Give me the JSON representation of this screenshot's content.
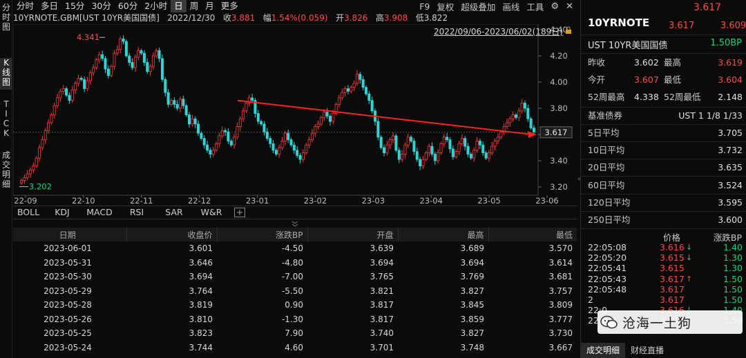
{
  "vtabs": [
    {
      "label": "分\n时\n图"
    },
    {
      "label": "K\n线\n图"
    },
    {
      "label": "T\nI\nC\nK"
    },
    {
      "label": "成\n交\n明\n细"
    }
  ],
  "periods": [
    "分时",
    "多日",
    "15分",
    "30分",
    "60分",
    "2小时",
    "日",
    "周",
    "月",
    "更多"
  ],
  "active_period": "日",
  "tools": [
    "F9",
    "复权",
    "超级叠加",
    "画线",
    "工具"
  ],
  "info": {
    "name": "10YRNOTE.GBM[UST 10YR美国国债]",
    "date": "2022/12/30",
    "close_label": "收",
    "close": "3.881",
    "chg_label": "幅",
    "chg": "1.54%(0.059)",
    "open_label": "开",
    "open": "3.826",
    "high_label": "高",
    "high": "3.908",
    "low_label": "低",
    "low": "3.822"
  },
  "range_label": "2022/09/06-2023/06/02(189日)",
  "chart_data": {
    "type": "candlestick",
    "y_ticks": [
      "4.40",
      "4.20",
      "4.00",
      "3.80",
      "3.60",
      "3.40",
      "3.20"
    ],
    "x_ticks": [
      "22-09",
      "22-10",
      "22-11",
      "22-12",
      "23-01",
      "23-02",
      "23-03",
      "23-04",
      "23-05",
      "23-06"
    ],
    "ylim": [
      3.2,
      4.4
    ],
    "max_label": "4.341",
    "min_label": "3.202",
    "last_label": "3.617",
    "closes": [
      3.25,
      3.27,
      3.3,
      3.33,
      3.36,
      3.42,
      3.5,
      3.56,
      3.63,
      3.69,
      3.75,
      3.82,
      3.88,
      3.93,
      3.95,
      3.9,
      3.86,
      3.94,
      3.99,
      4.03,
      4.02,
      3.95,
      4.01,
      4.07,
      4.11,
      4.17,
      4.21,
      4.18,
      4.1,
      4.05,
      4.12,
      4.22,
      4.25,
      4.33,
      4.31,
      4.2,
      4.15,
      4.11,
      4.19,
      4.24,
      4.22,
      4.15,
      4.08,
      4.12,
      4.2,
      4.24,
      4.18,
      4.02,
      3.92,
      3.83,
      3.86,
      3.83,
      3.8,
      3.87,
      3.82,
      3.75,
      3.68,
      3.72,
      3.68,
      3.61,
      3.57,
      3.52,
      3.48,
      3.45,
      3.48,
      3.53,
      3.59,
      3.63,
      3.62,
      3.55,
      3.52,
      3.58,
      3.66,
      3.72,
      3.78,
      3.84,
      3.88,
      3.86,
      3.76,
      3.7,
      3.68,
      3.62,
      3.57,
      3.53,
      3.48,
      3.45,
      3.5,
      3.55,
      3.61,
      3.56,
      3.52,
      3.48,
      3.44,
      3.41,
      3.46,
      3.52,
      3.56,
      3.61,
      3.66,
      3.68,
      3.73,
      3.77,
      3.74,
      3.7,
      3.76,
      3.83,
      3.88,
      3.92,
      3.95,
      3.93,
      3.96,
      3.99,
      4.06,
      4.02,
      3.96,
      3.91,
      3.86,
      3.78,
      3.7,
      3.58,
      3.5,
      3.46,
      3.52,
      3.56,
      3.59,
      3.48,
      3.41,
      3.45,
      3.52,
      3.58,
      3.55,
      3.47,
      3.41,
      3.36,
      3.41,
      3.46,
      3.51,
      3.45,
      3.4,
      3.46,
      3.53,
      3.58,
      3.56,
      3.49,
      3.43,
      3.47,
      3.53,
      3.57,
      3.51,
      3.45,
      3.42,
      3.48,
      3.55,
      3.52,
      3.46,
      3.42,
      3.46,
      3.51,
      3.55,
      3.58,
      3.62,
      3.66,
      3.69,
      3.72,
      3.75,
      3.73,
      3.78,
      3.84,
      3.8,
      3.72,
      3.65,
      3.62
    ]
  },
  "indicators": [
    "BOLL",
    "KDJ",
    "MACD",
    "RSI",
    "SAR",
    "W&R"
  ],
  "table": {
    "headers": [
      "日期",
      "收盘价",
      "涨跌BP",
      "开盘",
      "最高",
      "最低"
    ],
    "rows": [
      [
        "2023-06-01",
        "3.601",
        "-4.50",
        "3.639",
        "3.689",
        "3.570"
      ],
      [
        "2023-05-31",
        "3.646",
        "-4.80",
        "3.694",
        "3.694",
        "3.614"
      ],
      [
        "2023-05-30",
        "3.694",
        "-7.00",
        "3.765",
        "3.769",
        "3.681"
      ],
      [
        "2023-05-29",
        "3.764",
        "-5.50",
        "3.821",
        "3.827",
        "3.757"
      ],
      [
        "2023-05-28",
        "3.819",
        "0.90",
        "3.817",
        "3.845",
        "3.809"
      ],
      [
        "2023-05-26",
        "3.810",
        "-1.30",
        "3.817",
        "3.859",
        "3.777"
      ],
      [
        "2023-05-25",
        "3.823",
        "7.90",
        "3.740",
        "3.827",
        "3.730"
      ],
      [
        "2023-05-24",
        "3.744",
        "4.60",
        "3.701",
        "3.748",
        "3.667"
      ]
    ]
  },
  "quote": {
    "top_price": "3.617",
    "symbol": "10YRNOTE",
    "bid": "3.617",
    "ask": "3.609",
    "name": "UST 10YR美国国债",
    "bp": "1.50BP",
    "stats": [
      {
        "k1": "昨收",
        "v1": "3.602",
        "c1": "#e0e0e0",
        "k2": "最高",
        "v2": "3.619",
        "c2": "#ff4a4a"
      },
      {
        "k1": "今开",
        "v1": "3.607",
        "c1": "#ff4a4a",
        "k2": "最低",
        "v2": "3.604",
        "c2": "#ff4a4a"
      },
      {
        "k1": "52周最高",
        "v1": "4.338",
        "c1": "#e0e0e0",
        "k2": "52周最低",
        "v2": "2.148",
        "c2": "#e0e0e0"
      }
    ],
    "bench_label": "基准债券",
    "bench_value": "UST 1 1/8 1/33",
    "averages": [
      {
        "k": "5日平均",
        "v": "3.705"
      },
      {
        "k": "10日平均",
        "v": "3.732"
      },
      {
        "k": "20日平均",
        "v": "3.635"
      },
      {
        "k": "60日平均",
        "v": "3.524"
      },
      {
        "k": "120日平均",
        "v": "3.595"
      },
      {
        "k": "250日平均",
        "v": "3.600"
      }
    ],
    "tick_headers": [
      "价格",
      "涨跌BP"
    ],
    "ticks": [
      {
        "t": "22:05:08",
        "p": "3.616",
        "arrow": "↓",
        "bp": "1.40"
      },
      {
        "t": "22:05:20",
        "p": "3.615",
        "arrow": "↓",
        "bp": "1.30"
      },
      {
        "t": "22:05:41",
        "p": "3.615",
        "arrow": "",
        "bp": "1.30"
      },
      {
        "t": "22:05:43",
        "p": "3.617",
        "arrow": "↑",
        "bp": "1.50"
      },
      {
        "t": "22:05:48",
        "p": "3.617",
        "arrow": "",
        "bp": "1.50"
      },
      {
        "t": "2",
        "p": "3.617",
        "arrow": "",
        "bp": "1.50"
      },
      {
        "t": "22:0",
        "p": "3.616",
        "arrow": "↓",
        "bp": "1.40"
      },
      {
        "t": "22:0",
        "p": "3.617",
        "arrow": "↑",
        "bp": "1.50"
      }
    ],
    "watermark": "沧海一土狗",
    "bottom_tabs": [
      "成交明细",
      "财经直播"
    ]
  }
}
